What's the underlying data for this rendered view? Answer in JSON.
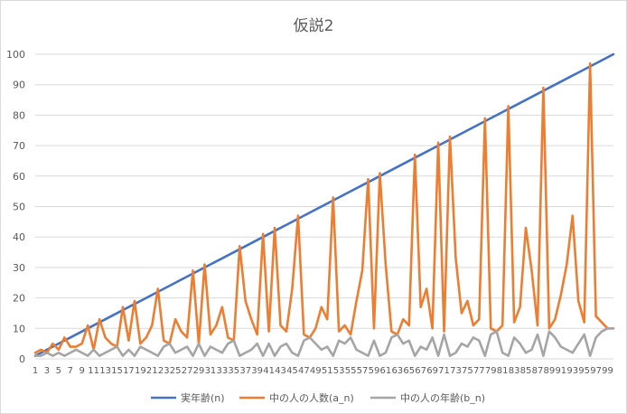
{
  "chart_data": {
    "type": "line",
    "title": "仮説2",
    "xlabel": "",
    "ylabel": "",
    "ylim": [
      0,
      100
    ],
    "yticks": [
      0,
      10,
      20,
      30,
      40,
      50,
      60,
      70,
      80,
      90,
      100
    ],
    "x": [
      1,
      2,
      3,
      4,
      5,
      6,
      7,
      8,
      9,
      10,
      11,
      12,
      13,
      14,
      15,
      16,
      17,
      18,
      19,
      20,
      21,
      22,
      23,
      24,
      25,
      26,
      27,
      28,
      29,
      30,
      31,
      32,
      33,
      34,
      35,
      36,
      37,
      38,
      39,
      40,
      41,
      42,
      43,
      44,
      45,
      46,
      47,
      48,
      49,
      50,
      51,
      52,
      53,
      54,
      55,
      56,
      57,
      58,
      59,
      60,
      61,
      62,
      63,
      64,
      65,
      66,
      67,
      68,
      69,
      70,
      71,
      72,
      73,
      74,
      75,
      76,
      77,
      78,
      79,
      80,
      81,
      82,
      83,
      84,
      85,
      86,
      87,
      88,
      89,
      90,
      91,
      92,
      93,
      94,
      95,
      96,
      97,
      98,
      99,
      100
    ],
    "xtick_labels": [
      "1",
      "3",
      "5",
      "7",
      "9",
      "11",
      "13",
      "15",
      "17",
      "19",
      "21",
      "23",
      "25",
      "27",
      "29",
      "31",
      "33",
      "35",
      "37",
      "39",
      "41",
      "43",
      "45",
      "47",
      "49",
      "51",
      "53",
      "55",
      "57",
      "59",
      "61",
      "63",
      "65",
      "67",
      "69",
      "71",
      "73",
      "75",
      "77",
      "79",
      "81",
      "83",
      "85",
      "87",
      "89",
      "91",
      "93",
      "95",
      "97",
      "99"
    ],
    "grid": true,
    "legend": "bottom",
    "series": [
      {
        "name": "実年齢(n)",
        "color": "#4472c4",
        "values": [
          1,
          2,
          3,
          4,
          5,
          6,
          7,
          8,
          9,
          10,
          11,
          12,
          13,
          14,
          15,
          16,
          17,
          18,
          19,
          20,
          21,
          22,
          23,
          24,
          25,
          26,
          27,
          28,
          29,
          30,
          31,
          32,
          33,
          34,
          35,
          36,
          37,
          38,
          39,
          40,
          41,
          42,
          43,
          44,
          45,
          46,
          47,
          48,
          49,
          50,
          51,
          52,
          53,
          54,
          55,
          56,
          57,
          58,
          59,
          60,
          61,
          62,
          63,
          64,
          65,
          66,
          67,
          68,
          69,
          70,
          71,
          72,
          73,
          74,
          75,
          76,
          77,
          78,
          79,
          80,
          81,
          82,
          83,
          84,
          85,
          86,
          87,
          88,
          89,
          90,
          91,
          92,
          93,
          94,
          95,
          96,
          97,
          98,
          99,
          100
        ]
      },
      {
        "name": "中の人の人数(a_n)",
        "color": "#ed7d31",
        "values": [
          2,
          3,
          2,
          5,
          3,
          7,
          4,
          4,
          5,
          11,
          3,
          13,
          7,
          5,
          4,
          17,
          6,
          19,
          5,
          7,
          11,
          23,
          6,
          5,
          13,
          9,
          7,
          29,
          5,
          31,
          8,
          11,
          17,
          7,
          6,
          37,
          19,
          13,
          8,
          41,
          9,
          43,
          11,
          9,
          23,
          47,
          8,
          7,
          10,
          17,
          13,
          53,
          9,
          11,
          8,
          19,
          29,
          59,
          10,
          61,
          31,
          9,
          8,
          13,
          11,
          67,
          17,
          23,
          10,
          71,
          9,
          73,
          33,
          15,
          19,
          11,
          13,
          79,
          10,
          9,
          11,
          83,
          12,
          17,
          43,
          29,
          11,
          89,
          10,
          13,
          21,
          31,
          47,
          19,
          12,
          97,
          14,
          12,
          10,
          10
        ]
      },
      {
        "name": "中の人の年齢(b_n)",
        "color": "#a5a5a5",
        "values": [
          1,
          1,
          2,
          1,
          2,
          1,
          2,
          3,
          2,
          1,
          3,
          1,
          2,
          3,
          4,
          1,
          3,
          1,
          4,
          3,
          2,
          1,
          4,
          5,
          2,
          3,
          4,
          1,
          5,
          1,
          4,
          3,
          2,
          5,
          6,
          1,
          2,
          3,
          5,
          1,
          5,
          1,
          4,
          5,
          2,
          1,
          6,
          7,
          5,
          3,
          4,
          1,
          6,
          5,
          7,
          3,
          2,
          1,
          6,
          1,
          2,
          7,
          8,
          5,
          6,
          1,
          4,
          3,
          7,
          1,
          8,
          1,
          2,
          5,
          4,
          7,
          6,
          1,
          8,
          9,
          2,
          1,
          7,
          5,
          2,
          3,
          8,
          1,
          9,
          7,
          4,
          3,
          2,
          5,
          8,
          1,
          7,
          9,
          10,
          10
        ]
      }
    ]
  }
}
